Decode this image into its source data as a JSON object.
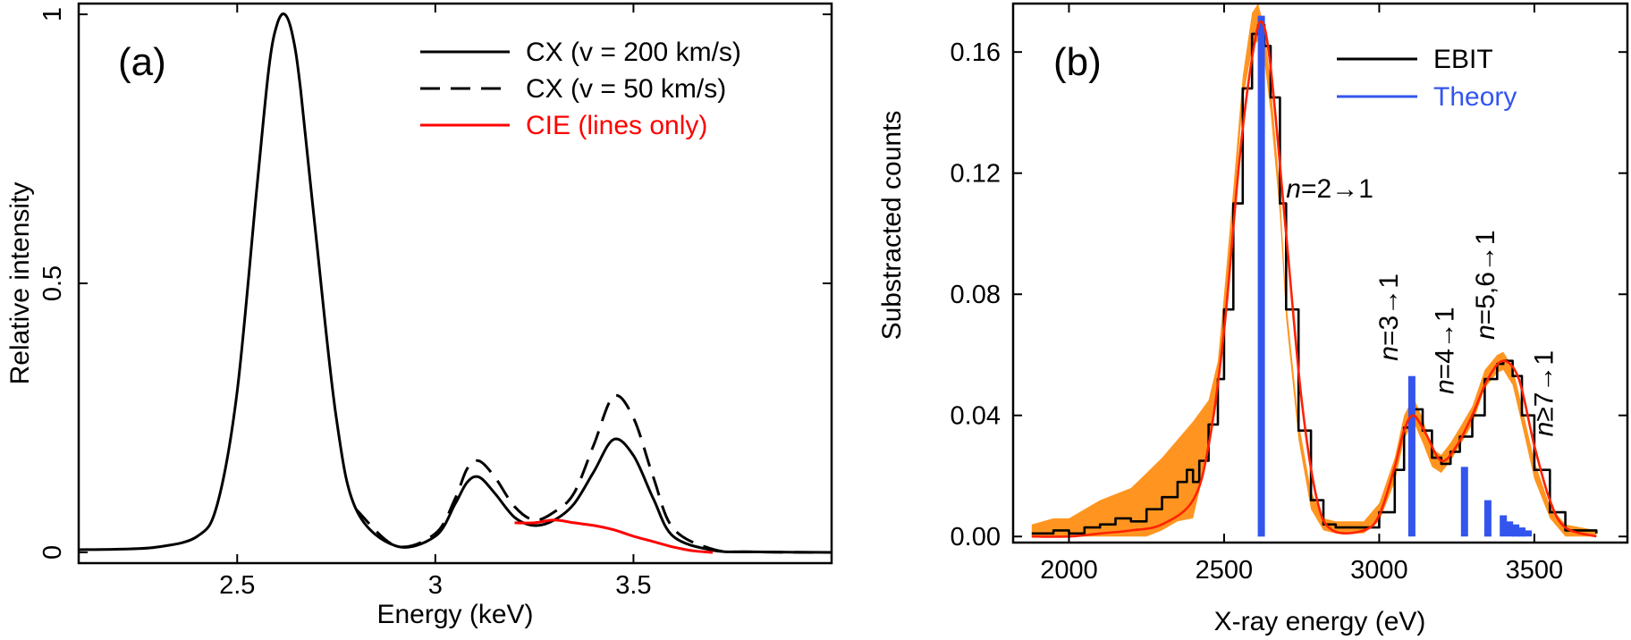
{
  "chart_data": [
    {
      "type": "line",
      "panel_label": "(a)",
      "xlabel": "Energy (keV)",
      "ylabel": "Relative intensity",
      "xlim": [
        2.1,
        4.0
      ],
      "ylim": [
        -0.02,
        1.02
      ],
      "x_ticks": [
        2.5,
        3,
        3.5
      ],
      "x_tick_labels": [
        "2.5",
        "3",
        "3.5"
      ],
      "y_ticks": [
        0,
        0.5,
        1
      ],
      "y_tick_labels": [
        "0",
        "0.5",
        "1"
      ],
      "legend_position": "top-right",
      "series": [
        {
          "name": "CX (v = 200 km/s)",
          "color": "#000000",
          "dash": "solid",
          "x": [
            2.1,
            2.2,
            2.3,
            2.4,
            2.45,
            2.5,
            2.55,
            2.58,
            2.6,
            2.62,
            2.64,
            2.66,
            2.7,
            2.75,
            2.8,
            2.9,
            3.0,
            3.05,
            3.08,
            3.11,
            3.15,
            3.2,
            3.25,
            3.3,
            3.35,
            3.4,
            3.45,
            3.5,
            3.55,
            3.6,
            3.7,
            3.8,
            4.0
          ],
          "y": [
            0.005,
            0.006,
            0.01,
            0.03,
            0.09,
            0.3,
            0.68,
            0.9,
            0.98,
            1.0,
            0.96,
            0.86,
            0.58,
            0.25,
            0.08,
            0.012,
            0.03,
            0.09,
            0.13,
            0.14,
            0.11,
            0.065,
            0.05,
            0.06,
            0.09,
            0.15,
            0.21,
            0.18,
            0.1,
            0.03,
            0.004,
            0.001,
            0.0
          ]
        },
        {
          "name": "CX (v = 50 km/s)",
          "color": "#000000",
          "dash": "dashed",
          "x": [
            2.8,
            2.9,
            3.0,
            3.05,
            3.08,
            3.11,
            3.15,
            3.2,
            3.25,
            3.3,
            3.35,
            3.4,
            3.45,
            3.5,
            3.55,
            3.6,
            3.7,
            3.8,
            4.0
          ],
          "y": [
            0.08,
            0.012,
            0.035,
            0.1,
            0.155,
            0.17,
            0.14,
            0.085,
            0.06,
            0.075,
            0.11,
            0.2,
            0.29,
            0.25,
            0.14,
            0.045,
            0.006,
            0.001,
            0.0
          ]
        },
        {
          "name": "CIE (lines only)",
          "color": "#ff0000",
          "dash": "solid",
          "x": [
            3.2,
            3.25,
            3.3,
            3.35,
            3.4,
            3.45,
            3.5,
            3.55,
            3.6,
            3.65,
            3.7
          ],
          "y": [
            0.055,
            0.055,
            0.06,
            0.055,
            0.05,
            0.042,
            0.03,
            0.02,
            0.01,
            0.003,
            0.0
          ]
        }
      ]
    },
    {
      "type": "line",
      "panel_label": "(b)",
      "xlabel": "X-ray energy (eV)",
      "ylabel": "Substracted counts",
      "xlim": [
        1820,
        3800
      ],
      "ylim": [
        -0.002,
        0.176
      ],
      "x_ticks": [
        2000,
        2500,
        3000,
        3500
      ],
      "x_tick_labels": [
        "2000",
        "2500",
        "3000",
        "3500"
      ],
      "y_ticks": [
        0,
        0.04,
        0.08,
        0.12,
        0.16
      ],
      "y_tick_labels": [
        "0.00",
        "0.04",
        "0.08",
        "0.12",
        "0.16"
      ],
      "legend_position": "top-right",
      "series": [
        {
          "name": "EBIT",
          "color": "#000000",
          "dash": "solid",
          "x": [
            1880,
            1950,
            2000,
            2050,
            2100,
            2150,
            2200,
            2250,
            2300,
            2350,
            2380,
            2400,
            2420,
            2450,
            2480,
            2500,
            2530,
            2560,
            2590,
            2610,
            2630,
            2650,
            2680,
            2700,
            2740,
            2780,
            2820,
            2860,
            2900,
            2950,
            3000,
            3050,
            3080,
            3110,
            3140,
            3170,
            3200,
            3230,
            3260,
            3300,
            3340,
            3380,
            3400,
            3430,
            3460,
            3500,
            3550,
            3600,
            3700
          ],
          "y": [
            0.001,
            0.002,
            0.001,
            0.003,
            0.004,
            0.006,
            0.005,
            0.009,
            0.013,
            0.018,
            0.022,
            0.018,
            0.025,
            0.037,
            0.052,
            0.075,
            0.11,
            0.148,
            0.166,
            0.169,
            0.162,
            0.145,
            0.11,
            0.075,
            0.035,
            0.012,
            0.004,
            0.003,
            0.003,
            0.003,
            0.008,
            0.022,
            0.036,
            0.042,
            0.035,
            0.026,
            0.024,
            0.028,
            0.033,
            0.04,
            0.052,
            0.057,
            0.058,
            0.053,
            0.04,
            0.022,
            0.008,
            0.002,
            0.001
          ]
        },
        {
          "name": "Theory",
          "color": "#3355ee",
          "dash": "solid",
          "style": "bars",
          "x": [
            2620,
            3105,
            3275,
            3350,
            3400,
            3420,
            3440,
            3460,
            3480
          ],
          "y": [
            0.172,
            0.053,
            0.023,
            0.012,
            0.007,
            0.005,
            0.004,
            0.003,
            0.002
          ]
        },
        {
          "name": "",
          "color": "#ff2200",
          "dash": "solid",
          "x": [
            1880,
            2000,
            2100,
            2200,
            2300,
            2400,
            2450,
            2500,
            2550,
            2590,
            2620,
            2650,
            2700,
            2750,
            2800,
            2850,
            2950,
            3000,
            3050,
            3080,
            3110,
            3150,
            3200,
            3250,
            3300,
            3350,
            3400,
            3450,
            3500,
            3550,
            3600,
            3700
          ],
          "y": [
            0.0,
            0.0,
            0.001,
            0.002,
            0.004,
            0.012,
            0.03,
            0.068,
            0.125,
            0.158,
            0.17,
            0.155,
            0.1,
            0.045,
            0.012,
            0.002,
            0.002,
            0.007,
            0.023,
            0.035,
            0.04,
            0.034,
            0.025,
            0.03,
            0.04,
            0.052,
            0.058,
            0.052,
            0.03,
            0.012,
            0.003,
            0.0
          ]
        }
      ],
      "band": {
        "name": "",
        "color": "#ff9520",
        "x": [
          1880,
          1950,
          2000,
          2050,
          2100,
          2150,
          2200,
          2250,
          2300,
          2350,
          2400,
          2450,
          2480,
          2500,
          2530,
          2560,
          2590,
          2610,
          2630,
          2650,
          2680,
          2700,
          2740,
          2780,
          2820,
          2860,
          2900,
          2950,
          3000,
          3050,
          3080,
          3110,
          3140,
          3170,
          3200,
          3230,
          3260,
          3300,
          3340,
          3380,
          3400,
          3430,
          3460,
          3500,
          3550,
          3600,
          3700
        ],
        "upper": [
          0.004,
          0.006,
          0.006,
          0.009,
          0.012,
          0.014,
          0.016,
          0.021,
          0.026,
          0.032,
          0.038,
          0.045,
          0.058,
          0.08,
          0.115,
          0.152,
          0.173,
          0.176,
          0.168,
          0.15,
          0.114,
          0.078,
          0.038,
          0.015,
          0.006,
          0.005,
          0.005,
          0.005,
          0.011,
          0.026,
          0.04,
          0.046,
          0.039,
          0.029,
          0.027,
          0.031,
          0.036,
          0.043,
          0.055,
          0.06,
          0.061,
          0.056,
          0.043,
          0.025,
          0.01,
          0.004,
          0.002
        ],
        "lower": [
          0.0,
          0.0,
          0.0,
          0.0,
          0.0,
          0.0,
          0.0,
          0.0,
          0.002,
          0.005,
          0.006,
          0.028,
          0.046,
          0.07,
          0.105,
          0.144,
          0.161,
          0.164,
          0.157,
          0.14,
          0.106,
          0.072,
          0.032,
          0.009,
          0.002,
          0.001,
          0.001,
          0.001,
          0.005,
          0.018,
          0.032,
          0.038,
          0.031,
          0.023,
          0.021,
          0.025,
          0.03,
          0.037,
          0.049,
          0.054,
          0.055,
          0.05,
          0.037,
          0.019,
          0.006,
          0.0,
          0.0
        ]
      },
      "annotations": [
        {
          "prefix": "n",
          "text": "=2→1",
          "x": 2700,
          "y": 0.112,
          "rotation": 0
        },
        {
          "prefix": "n",
          "text": "=3→1",
          "x": 3060,
          "y": 0.058,
          "rotation": -90
        },
        {
          "prefix": "n",
          "text": "=4→1",
          "x": 3240,
          "y": 0.047,
          "rotation": -90
        },
        {
          "prefix": "n",
          "text": "=5,6→1",
          "x": 3370,
          "y": 0.065,
          "rotation": -90
        },
        {
          "prefix": "n",
          "text": "≥7→1",
          "x": 3560,
          "y": 0.033,
          "rotation": -90
        }
      ]
    }
  ]
}
